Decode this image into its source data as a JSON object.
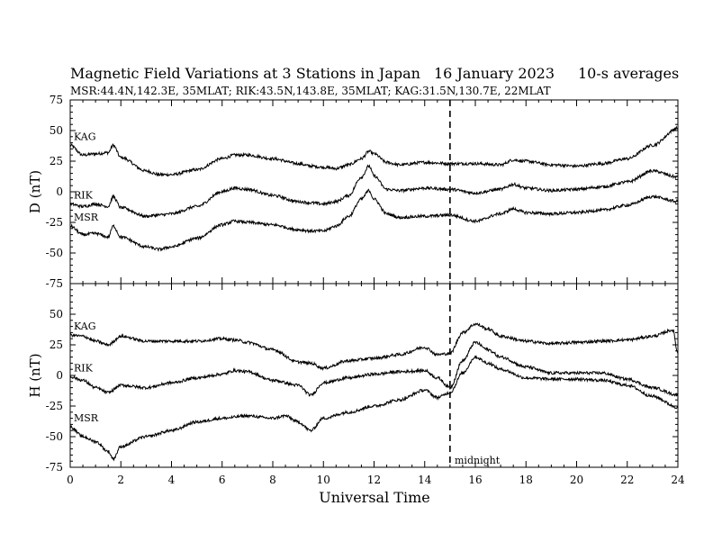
{
  "title": "Magnetic Field Variations at 3 Stations in Japan",
  "date": "16 January  2023",
  "averaging": "10-s averages",
  "stations_line": "MSR:44.4N,142.3E, 35MLAT;  RIK:43.5N,143.8E, 35MLAT;  KAG:31.5N,130.7E, 22MLAT",
  "midnight_label": "midnight",
  "chart_data": [
    {
      "type": "line",
      "panel": "D",
      "ylabel": "D (nT)",
      "xlabel": "",
      "xlim": [
        0,
        24
      ],
      "ylim": [
        -75,
        75
      ],
      "yticks": [
        75,
        50,
        25,
        0,
        -25,
        -50,
        -75
      ],
      "xticks": [
        0,
        2,
        4,
        6,
        8,
        10,
        12,
        14,
        16,
        18,
        20,
        22,
        24
      ],
      "marker_line_x": 15,
      "series": [
        {
          "name": "KAG",
          "x": [
            0,
            0.5,
            1,
            1.5,
            1.7,
            2,
            3,
            3.5,
            4,
            5,
            6,
            6.5,
            7,
            8,
            9,
            9.5,
            10,
            10.5,
            11,
            11.5,
            11.8,
            12,
            12.5,
            13,
            14,
            15,
            16,
            17,
            17.5,
            18,
            19,
            20,
            21,
            22,
            23,
            24
          ],
          "y": [
            38,
            30,
            31,
            32,
            38,
            28,
            17,
            14,
            14,
            18,
            27,
            30,
            30,
            27,
            23,
            21,
            20,
            19,
            22,
            27,
            33,
            31,
            24,
            22,
            24,
            23,
            23,
            22,
            26,
            25,
            22,
            21,
            23,
            27,
            38,
            52
          ]
        },
        {
          "name": "RIK",
          "x": [
            0,
            0.5,
            1,
            1.5,
            1.7,
            2,
            3,
            3.5,
            4,
            5,
            6,
            6.5,
            7,
            8,
            9,
            9.5,
            10,
            10.5,
            11,
            11.5,
            11.8,
            12,
            12.5,
            13,
            14,
            15,
            16,
            17,
            17.5,
            18,
            19,
            20,
            21,
            22,
            23,
            24
          ],
          "y": [
            -10,
            -12,
            -10,
            -12,
            -4,
            -13,
            -20,
            -19,
            -18,
            -12,
            0,
            3,
            2,
            -3,
            -8,
            -9,
            -10,
            -8,
            -3,
            12,
            21,
            13,
            2,
            1,
            3,
            2,
            -1,
            2,
            6,
            3,
            1,
            2,
            4,
            8,
            17,
            12
          ]
        },
        {
          "name": "MSR",
          "x": [
            0,
            0.5,
            1,
            1.5,
            1.7,
            2,
            3,
            3.5,
            4,
            5,
            6,
            6.5,
            7,
            8,
            9,
            9.5,
            10,
            10.5,
            11,
            11.5,
            11.8,
            12,
            12.5,
            13,
            14,
            15,
            16,
            17,
            17.5,
            18,
            19,
            20,
            21,
            22,
            23,
            24
          ],
          "y": [
            -28,
            -35,
            -34,
            -37,
            -28,
            -37,
            -45,
            -47,
            -45,
            -38,
            -27,
            -24,
            -25,
            -27,
            -31,
            -32,
            -32,
            -28,
            -20,
            -6,
            1,
            -6,
            -18,
            -21,
            -20,
            -19,
            -24,
            -18,
            -14,
            -17,
            -18,
            -17,
            -15,
            -11,
            -4,
            -8
          ]
        }
      ]
    },
    {
      "type": "line",
      "panel": "H",
      "ylabel": "H (nT)",
      "xlabel": "Universal Time",
      "xlim": [
        0,
        24
      ],
      "ylim": [
        -75,
        75
      ],
      "yticks": [
        50,
        25,
        0,
        -25,
        -50,
        -75
      ],
      "xticks": [
        0,
        2,
        4,
        6,
        8,
        10,
        12,
        14,
        16,
        18,
        20,
        22,
        24
      ],
      "xticklabels": [
        "0",
        "2",
        "4",
        "6",
        "8",
        "10",
        "12",
        "14",
        "16",
        "18",
        "20",
        "22",
        "24"
      ],
      "marker_line_x": 15,
      "series": [
        {
          "name": "KAG",
          "x": [
            0,
            0.5,
            1,
            1.5,
            2,
            3,
            4,
            5,
            6,
            6.5,
            7,
            8,
            9,
            9.5,
            10,
            11,
            12,
            13,
            14,
            14.5,
            15,
            15.5,
            16,
            16.5,
            17,
            18,
            19,
            20,
            21,
            22,
            23,
            23.8,
            24
          ],
          "y": [
            33,
            32,
            28,
            25,
            32,
            28,
            28,
            28,
            30,
            29,
            27,
            21,
            11,
            10,
            6,
            12,
            14,
            17,
            23,
            17,
            18,
            35,
            42,
            38,
            32,
            28,
            26,
            27,
            28,
            29,
            32,
            37,
            18
          ]
        },
        {
          "name": "RIK",
          "x": [
            0,
            0.5,
            1,
            1.5,
            2,
            3,
            4,
            5,
            6,
            6.5,
            7,
            8,
            9,
            9.5,
            10,
            11,
            12,
            13,
            14,
            14.5,
            15,
            15.5,
            16,
            16.5,
            17,
            18,
            19,
            20,
            21,
            22,
            23,
            24
          ],
          "y": [
            -1,
            -4,
            -10,
            -14,
            -8,
            -10,
            -6,
            -2,
            1,
            4,
            3,
            -4,
            -8,
            -16,
            -6,
            -2,
            1,
            3,
            4,
            -2,
            -10,
            12,
            27,
            21,
            15,
            7,
            2,
            2,
            2,
            -3,
            -10,
            -16
          ]
        },
        {
          "name": "MSR",
          "x": [
            0,
            0.5,
            1,
            1.5,
            1.7,
            2,
            3,
            4,
            5,
            6,
            7,
            8,
            8.5,
            9,
            9.5,
            10,
            11,
            12,
            13,
            14,
            14.5,
            15,
            15.5,
            16,
            16.5,
            17,
            18,
            19,
            20,
            21,
            22,
            23,
            24
          ],
          "y": [
            -42,
            -50,
            -54,
            -62,
            -68,
            -58,
            -50,
            -45,
            -38,
            -35,
            -33,
            -35,
            -33,
            -38,
            -45,
            -35,
            -30,
            -25,
            -20,
            -12,
            -18,
            -14,
            2,
            15,
            10,
            5,
            -2,
            -3,
            -3,
            -4,
            -8,
            -17,
            -26
          ]
        }
      ]
    }
  ]
}
